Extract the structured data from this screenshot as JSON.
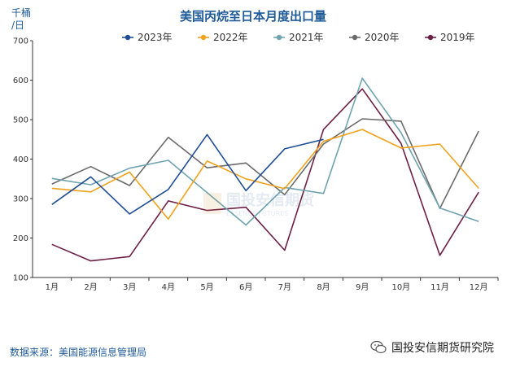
{
  "chart_data": {
    "type": "line",
    "title": "美国丙烷至日本月度出口量",
    "unit_label_line1": "千桶",
    "unit_label_line2": "/日",
    "categories": [
      "1月",
      "2月",
      "3月",
      "4月",
      "5月",
      "6月",
      "7月",
      "8月",
      "9月",
      "10月",
      "11月",
      "12月"
    ],
    "ylim": [
      100,
      700
    ],
    "yticks": [
      100,
      200,
      300,
      400,
      500,
      600,
      700
    ],
    "grid": false,
    "legend_position": "top",
    "series": [
      {
        "name": "2023年",
        "color": "#1f4e96",
        "values": [
          285,
          355,
          261,
          323,
          462,
          320,
          426,
          450,
          null,
          null,
          null,
          null
        ]
      },
      {
        "name": "2022年",
        "color": "#f0a21c",
        "values": [
          326,
          317,
          367,
          248,
          395,
          350,
          325,
          445,
          475,
          428,
          438,
          326
        ]
      },
      {
        "name": "2021年",
        "color": "#6fa3b0",
        "values": [
          351,
          335,
          377,
          397,
          315,
          233,
          328,
          313,
          605,
          467,
          276,
          242
        ]
      },
      {
        "name": "2020年",
        "color": "#6b6b6b",
        "values": [
          337,
          381,
          333,
          455,
          378,
          390,
          310,
          438,
          502,
          496,
          275,
          471
        ]
      },
      {
        "name": "2019年",
        "color": "#6e1f45",
        "values": [
          184,
          142,
          153,
          294,
          270,
          278,
          169,
          475,
          578,
          440,
          156,
          316
        ]
      }
    ]
  },
  "footer": {
    "source": "数据来源：美国能源信息管理局",
    "brand": "国投安信期货研究院"
  },
  "watermark": {
    "text": "国投安信期货",
    "subtext": "ESSENCE FUTURES"
  }
}
